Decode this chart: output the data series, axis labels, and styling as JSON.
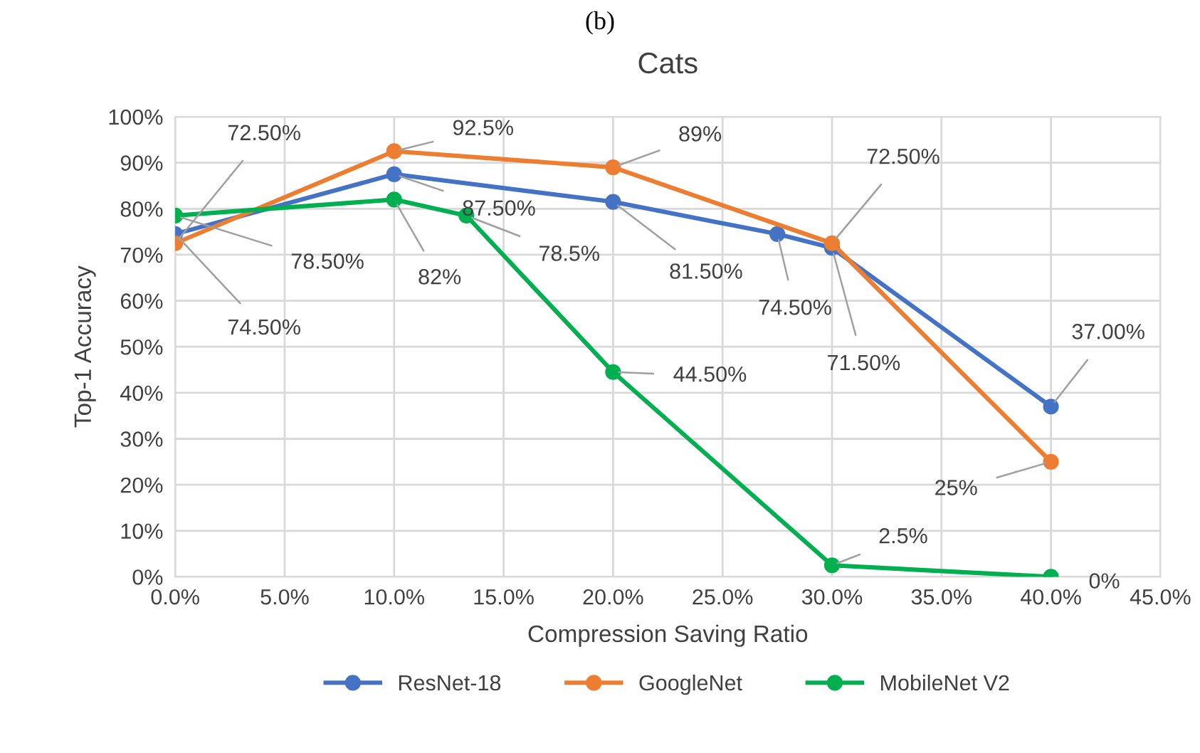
{
  "chart_data": {
    "type": "line",
    "title": "Cats",
    "xlabel": "Compression Saving Ratio",
    "ylabel": "Top-1 Accuracy",
    "annotations": [
      "(b)"
    ],
    "series": [
      {
        "name": "ResNet-18",
        "color": "#4472c4",
        "x": [
          0,
          10,
          20,
          27.5,
          30,
          40
        ],
        "values": [
          74.5,
          87.5,
          81.5,
          74.5,
          71.5,
          37
        ],
        "value_labels": [
          "74.50%",
          "87.50%",
          "81.50%",
          "74.50%",
          "71.50%",
          "37.00%"
        ]
      },
      {
        "name": "GoogleNet",
        "color": "#ed7d31",
        "x": [
          0,
          10,
          20,
          30,
          40
        ],
        "values": [
          72.5,
          92.5,
          89,
          72.5,
          25
        ],
        "value_labels": [
          "72.50%",
          "92.5%",
          "89%",
          "72.50%",
          "25%"
        ]
      },
      {
        "name": "MobileNet V2",
        "color": "#00b050",
        "x": [
          0,
          10,
          13.3,
          20,
          30,
          40
        ],
        "values": [
          78.5,
          82,
          78.5,
          44.5,
          2.5,
          0
        ],
        "value_labels": [
          "78.50%",
          "82%",
          "78.5%",
          "44.50%",
          "2.5%",
          "0%"
        ]
      }
    ],
    "xlim": [
      0,
      45
    ],
    "xticks": [
      {
        "value": 0,
        "label": "0.0%"
      },
      {
        "value": 5,
        "label": "5.0%"
      },
      {
        "value": 10,
        "label": "10.0%"
      },
      {
        "value": 15,
        "label": "15.0%"
      },
      {
        "value": 20,
        "label": "20.0%"
      },
      {
        "value": 25,
        "label": "25.0%"
      },
      {
        "value": 30,
        "label": "30.0%"
      },
      {
        "value": 35,
        "label": "35.0%"
      },
      {
        "value": 40,
        "label": "40.0%"
      },
      {
        "value": 45,
        "label": "45.0%"
      }
    ],
    "ylim": [
      0,
      100
    ],
    "yticks": [
      {
        "value": 0,
        "label": "0%"
      },
      {
        "value": 10,
        "label": "10%"
      },
      {
        "value": 20,
        "label": "20%"
      },
      {
        "value": 30,
        "label": "30%"
      },
      {
        "value": 40,
        "label": "40%"
      },
      {
        "value": 50,
        "label": "50%"
      },
      {
        "value": 60,
        "label": "60%"
      },
      {
        "value": 70,
        "label": "70%"
      },
      {
        "value": 80,
        "label": "80%"
      },
      {
        "value": 90,
        "label": "90%"
      },
      {
        "value": 100,
        "label": "100%"
      }
    ],
    "grid": true,
    "legend": "bottom",
    "marker": "circle",
    "line_style": "solid"
  }
}
